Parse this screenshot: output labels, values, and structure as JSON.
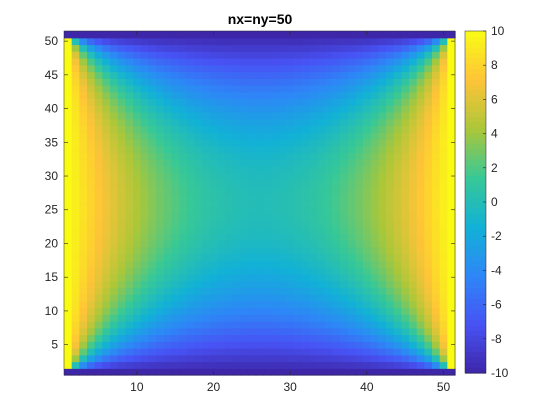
{
  "chart_data": {
    "type": "heatmap",
    "title": "nx=ny=50",
    "xlabel": "",
    "ylabel": "",
    "nx": 51,
    "ny": 51,
    "xlim": [
      0.5,
      51.5
    ],
    "ylim": [
      0.5,
      51.5
    ],
    "x_ticks": [
      10,
      20,
      30,
      40,
      50
    ],
    "y_ticks": [
      5,
      10,
      15,
      20,
      25,
      30,
      35,
      40,
      45,
      50
    ],
    "clim": [
      -10,
      10
    ],
    "colorbar_ticks": [
      -10,
      -8,
      -6,
      -4,
      -2,
      0,
      2,
      4,
      6,
      8,
      10
    ],
    "colormap": "parula",
    "boundary_values": {
      "left": 10,
      "right": 10,
      "top": -10,
      "bottom": -10
    },
    "description_of_field": "Laplace solution on 51x51 grid: +10 on left/right edges, -10 on top/bottom edges"
  }
}
